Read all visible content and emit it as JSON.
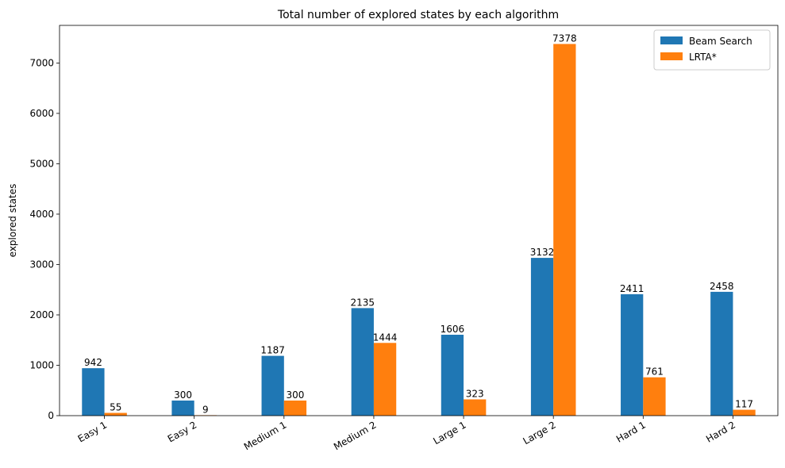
{
  "chart_data": {
    "type": "bar",
    "title": "Total number of explored states by each algorithm",
    "xlabel": "",
    "ylabel": "explored states",
    "categories": [
      "Easy 1",
      "Easy 2",
      "Medium 1",
      "Medium 2",
      "Large 1",
      "Large 2",
      "Hard 1",
      "Hard 2"
    ],
    "series": [
      {
        "name": "Beam Search",
        "color": "#1f77b4",
        "values": [
          942,
          300,
          1187,
          2135,
          1606,
          3132,
          2411,
          2458
        ]
      },
      {
        "name": "LRTA*",
        "color": "#ff7f0e",
        "values": [
          55,
          9,
          300,
          1444,
          323,
          7378,
          761,
          117
        ]
      }
    ],
    "ylim": [
      0,
      7746.9
    ],
    "yticks": [
      0,
      1000,
      2000,
      3000,
      4000,
      5000,
      6000,
      7000
    ],
    "grid": false,
    "legend": "top-right"
  }
}
